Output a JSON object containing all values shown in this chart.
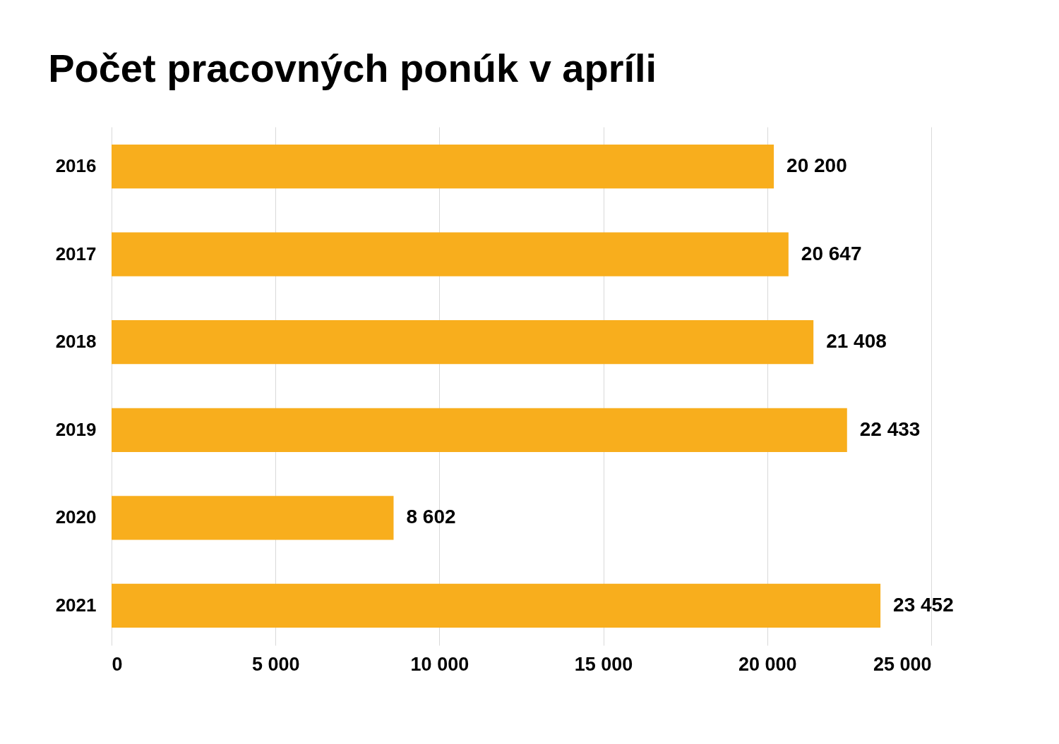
{
  "chart_data": {
    "type": "bar",
    "orientation": "horizontal",
    "title": "Počet pracovných ponúk v apríli",
    "categories": [
      "2016",
      "2017",
      "2018",
      "2019",
      "2020",
      "2021"
    ],
    "values": [
      20200,
      20647,
      21408,
      22433,
      8602,
      23452
    ],
    "value_labels": [
      "20 200",
      "20 647",
      "21 408",
      "22 433",
      "8  602",
      "23 452"
    ],
    "color": "#f8ae1d",
    "xlim": [
      0,
      25000
    ],
    "xticks": [
      0,
      {
        "value": 5000,
        "label": "5 000"
      },
      {
        "value": 10000,
        "label": "10 000"
      },
      {
        "value": 15000,
        "label": "15 000"
      },
      {
        "value": 20000,
        "label": "20 000"
      },
      {
        "value": 25000,
        "label": "25 000"
      }
    ],
    "grid": "x"
  }
}
